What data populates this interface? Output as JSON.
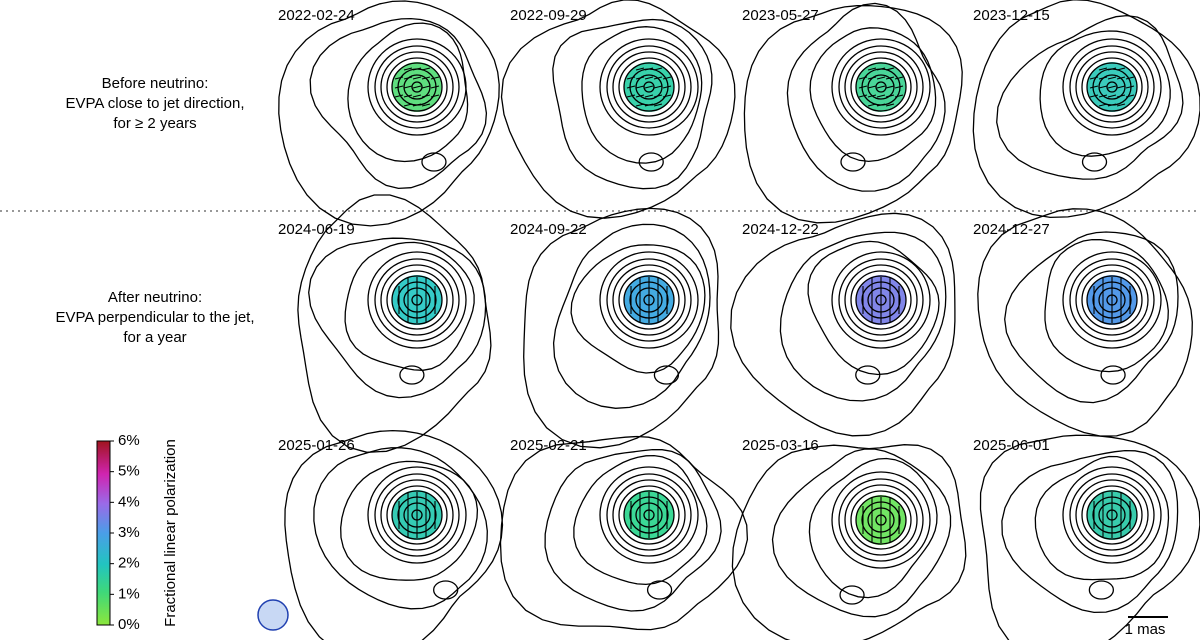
{
  "rows": [
    {
      "label_lines": [
        "Before neutrino:",
        "EVPA close to jet direction,",
        "for ≥ 2 years"
      ],
      "panels": [
        "2022-02-24",
        "2022-09-29",
        "2023-05-27",
        "2023-12-15"
      ]
    },
    {
      "label_lines": [
        "After neutrino:",
        "EVPA perpendicular to the jet,",
        "for a year"
      ],
      "panels": [
        "2024-06-19",
        "2024-09-22",
        "2024-12-22",
        "2024-12-27"
      ]
    },
    {
      "panels": [
        "2025-01-26",
        "2025-02-21",
        "2025-03-16",
        "2025-06-01"
      ]
    }
  ],
  "colorbar": {
    "label": "Fractional linear polarization",
    "lim": [
      0,
      6
    ],
    "ticks": [
      {
        "value": 0,
        "label": "0%"
      },
      {
        "value": 1,
        "label": "1%"
      },
      {
        "value": 2,
        "label": "2%"
      },
      {
        "value": 3,
        "label": "3%"
      },
      {
        "value": 4,
        "label": "4%"
      },
      {
        "value": 5,
        "label": "5%"
      },
      {
        "value": 6,
        "label": "6%"
      }
    ]
  },
  "scale_bar": "1 mas"
}
